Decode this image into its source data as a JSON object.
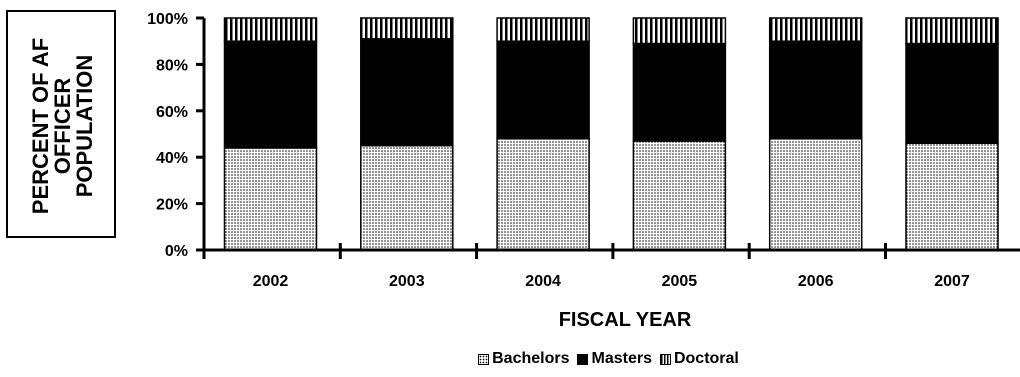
{
  "chart_data": {
    "type": "bar",
    "stacked": true,
    "categories": [
      "2002",
      "2003",
      "2004",
      "2005",
      "2006",
      "2007"
    ],
    "series": [
      {
        "name": "Bachelors",
        "values": [
          44,
          45,
          48,
          47,
          48,
          46
        ],
        "pattern": "dots"
      },
      {
        "name": "Masters",
        "values": [
          46,
          46,
          42,
          42,
          42,
          43
        ],
        "color": "#000000"
      },
      {
        "name": "Doctoral",
        "values": [
          10,
          9,
          10,
          11,
          10,
          11
        ],
        "pattern": "vertical-stripes"
      }
    ],
    "yticks": [
      "0%",
      "20%",
      "40%",
      "60%",
      "80%",
      "100%"
    ],
    "ylim": [
      0,
      100
    ],
    "ylabel": "PERCENT OF AF\nOFFICER\nPOPULATION",
    "xlabel": "FISCAL YEAR",
    "legend_position": "bottom"
  }
}
